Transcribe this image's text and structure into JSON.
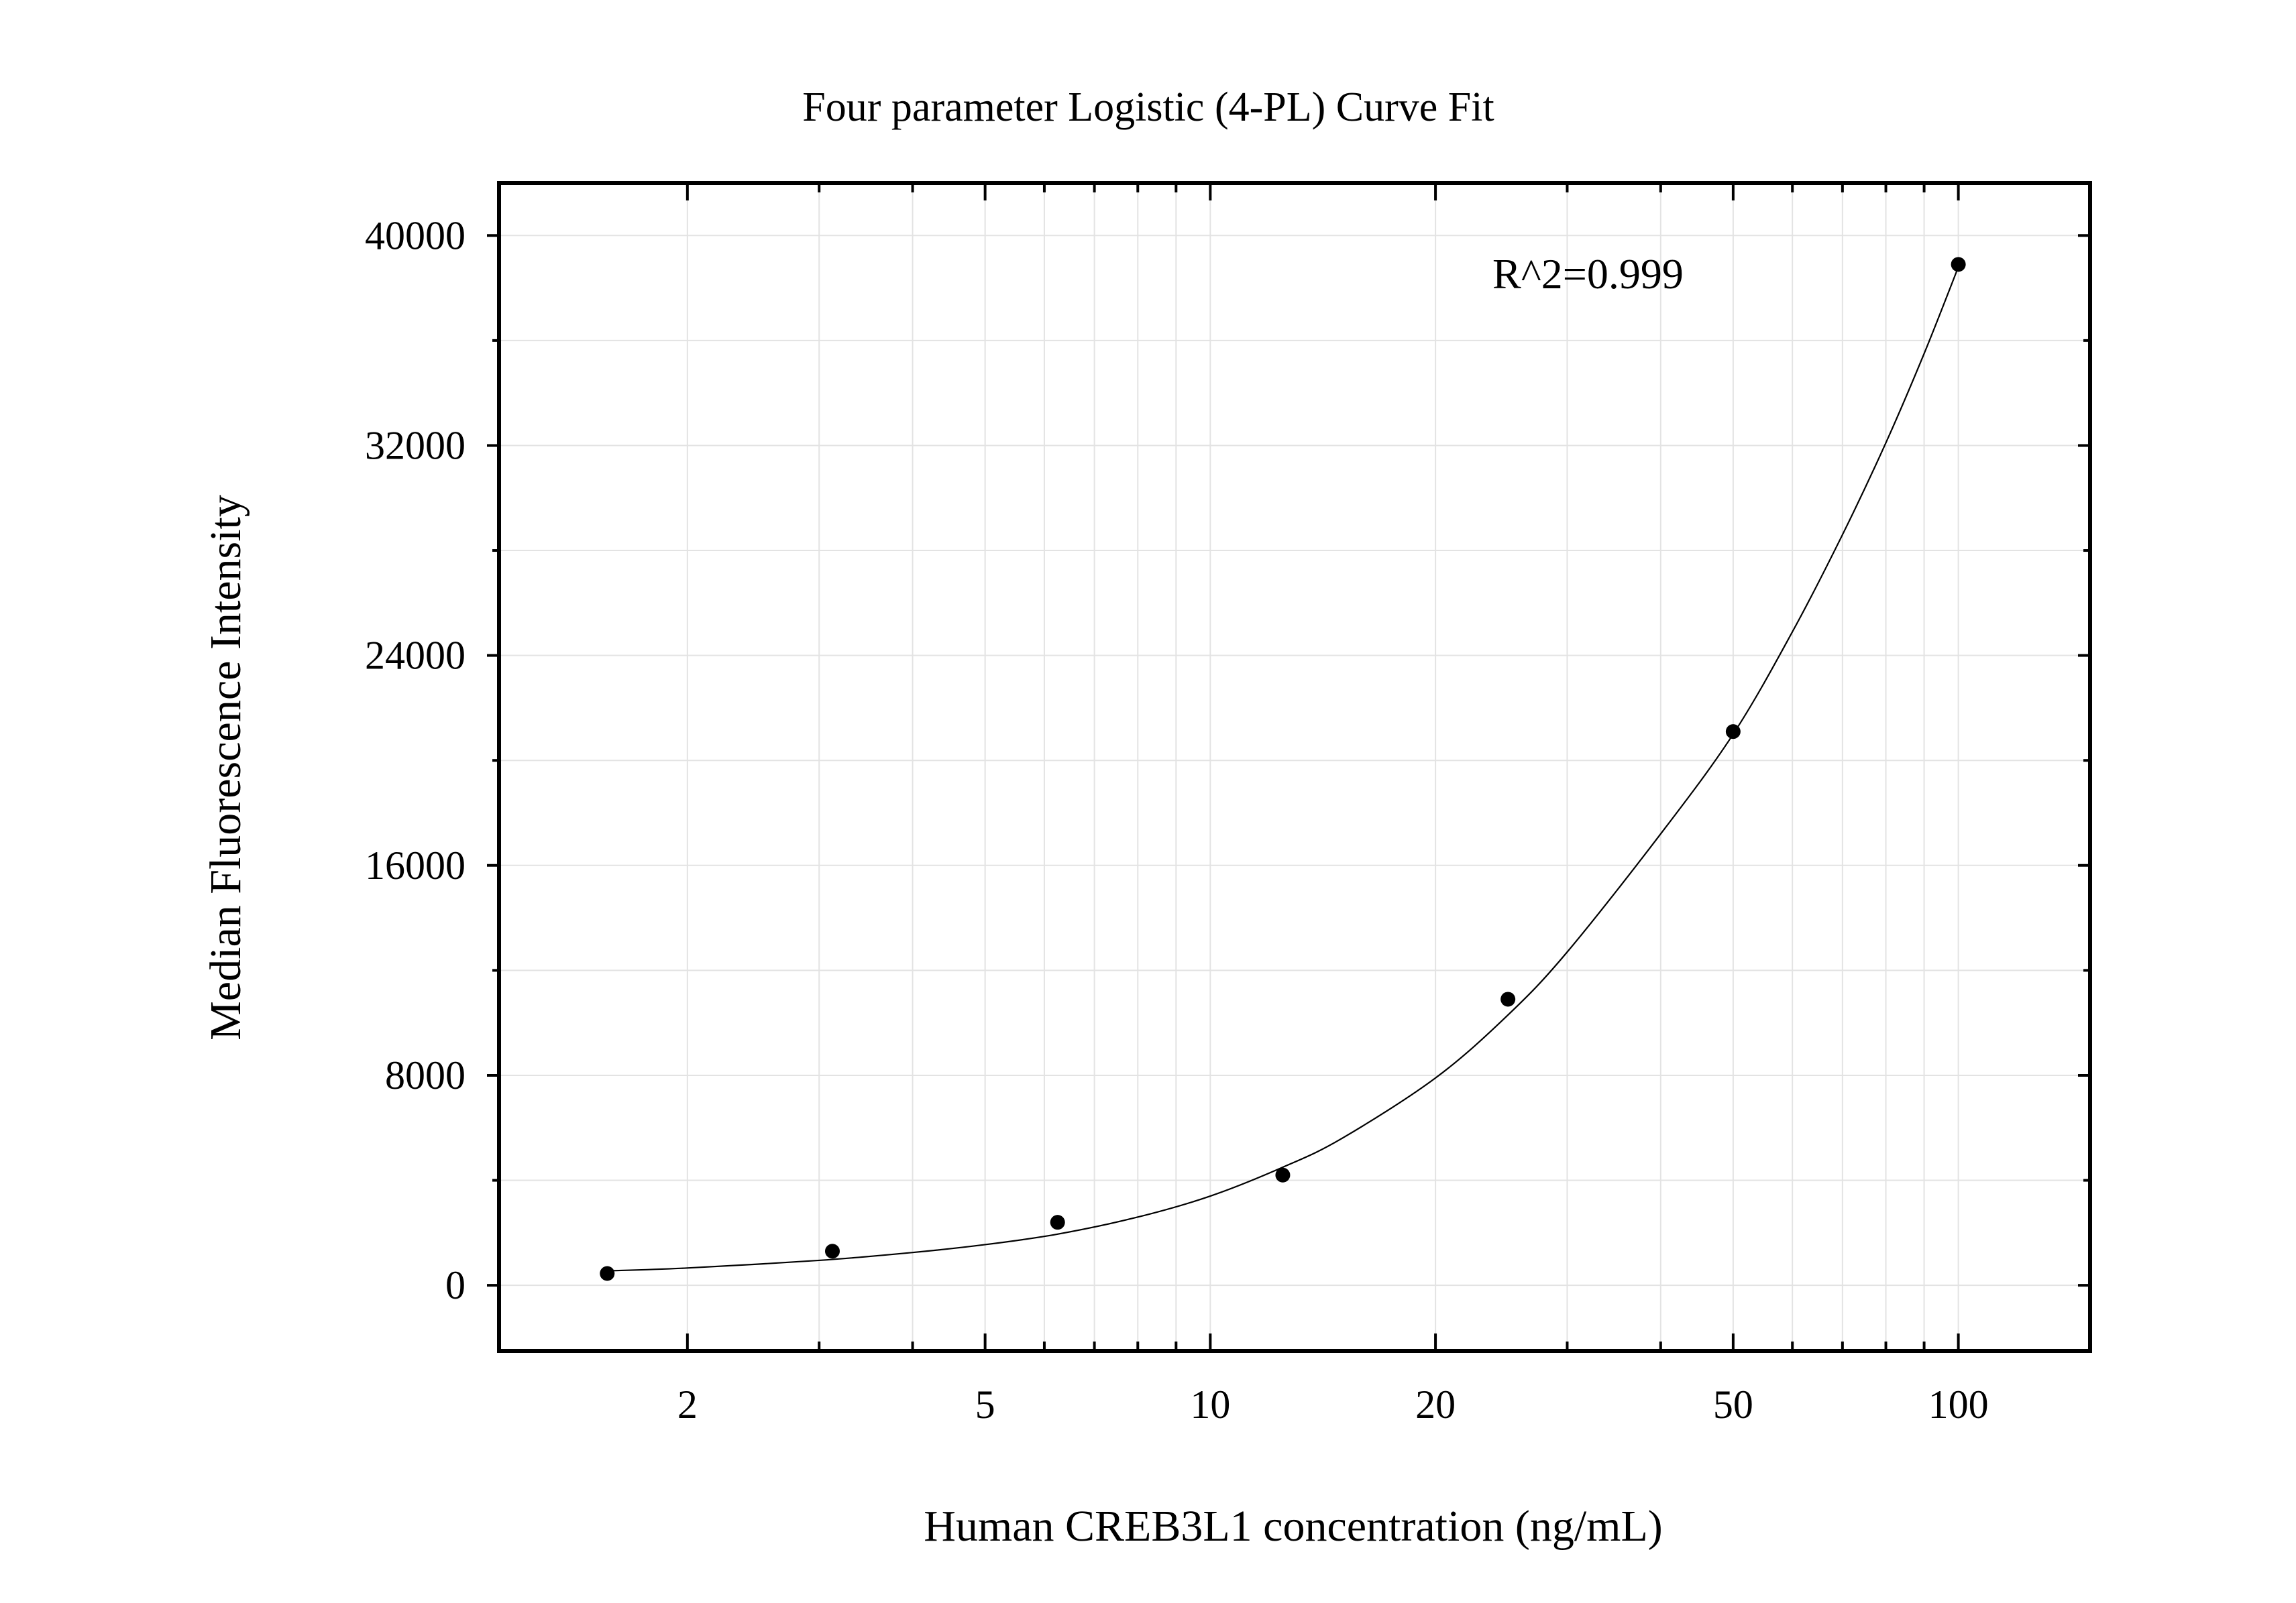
{
  "chart_data": {
    "type": "scatter",
    "title": "Four parameter Logistic (4-PL) Curve Fit",
    "xlabel": "Human CREB3L1 concentration (ng/mL)",
    "ylabel": "Median Fluorescence Intensity",
    "x_scale": "log",
    "y_scale": "linear",
    "xlim": [
      1.12,
      150
    ],
    "ylim": [
      -2500,
      42000
    ],
    "x_ticks": [
      2,
      5,
      10,
      20,
      50,
      100
    ],
    "x_tick_labels": [
      "2",
      "5",
      "10",
      "20",
      "50",
      "100"
    ],
    "y_ticks": [
      0,
      8000,
      16000,
      24000,
      32000,
      40000
    ],
    "y_tick_labels": [
      "0",
      "8000",
      "16000",
      "24000",
      "32000",
      "40000"
    ],
    "grid": true,
    "annotation": "R^2=0.999",
    "series": [
      {
        "kind": "points",
        "x": [
          1.5625,
          3.125,
          6.25,
          12.5,
          25,
          50,
          100
        ],
        "y": [
          450,
          1300,
          2400,
          4200,
          10900,
          21100,
          38900
        ],
        "color": "#000000"
      },
      {
        "kind": "fit-curve",
        "x": [
          1.5625,
          2,
          3,
          4,
          5,
          6.25,
          8,
          10,
          12.5,
          15,
          20,
          25,
          30,
          40,
          50,
          60,
          70,
          80,
          90,
          100
        ],
        "y": [
          550,
          660,
          950,
          1250,
          1550,
          1950,
          2600,
          3400,
          4500,
          5600,
          7900,
          10300,
          12700,
          17200,
          21000,
          24900,
          28600,
          32100,
          35500,
          38800
        ],
        "color": "#000000"
      }
    ]
  }
}
